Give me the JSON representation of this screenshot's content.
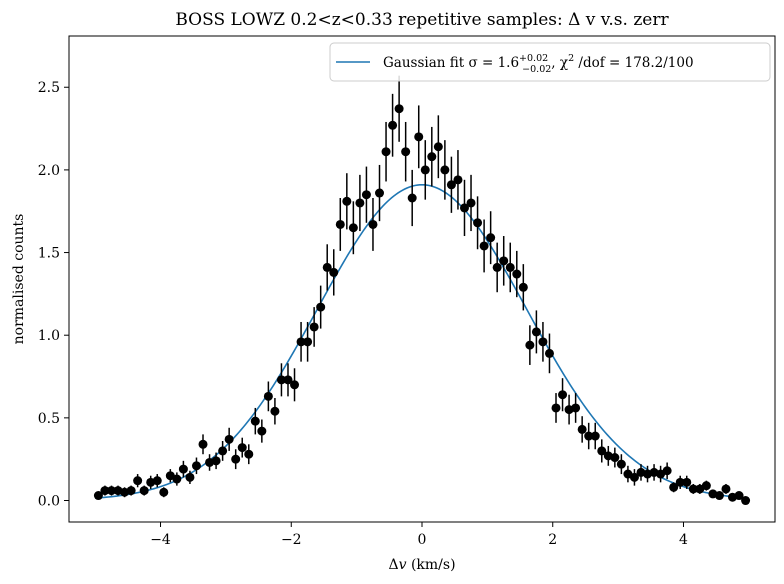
{
  "chart_data": {
    "type": "scatter",
    "title": "BOSS LOWZ 0.2<z<0.33 repetitive samples: Δ v v.s. zerr",
    "xlabel": "Δv (km/s)",
    "ylabel": "normalised counts",
    "xlim": [
      -5.4,
      5.4
    ],
    "ylim": [
      -0.13,
      2.81
    ],
    "xticks": [
      -4,
      -2,
      0,
      2,
      4
    ],
    "xtick_labels": [
      "−4",
      "−2",
      "0",
      "2",
      "4"
    ],
    "yticks": [
      0.0,
      0.5,
      1.0,
      1.5,
      2.0,
      2.5
    ],
    "ytick_labels": [
      "0.0",
      "0.5",
      "1.0",
      "1.5",
      "2.0",
      "2.5"
    ],
    "grid": false,
    "legend": {
      "placement": "upper-right",
      "entries": [
        {
          "label_prefix": "Gaussian fit σ = 1.6",
          "label_sup": "+0.02",
          "label_sub": "−0.02",
          "label_mid": ", χ",
          "label_sq": "2",
          "label_suffix": " /dof = 178.2/100",
          "color": "#1f77b4",
          "marker": "line"
        }
      ]
    },
    "series": [
      {
        "kind": "errorbar",
        "color": "#000000",
        "x": [
          -4.95,
          -4.85,
          -4.75,
          -4.65,
          -4.55,
          -4.45,
          -4.35,
          -4.25,
          -4.15,
          -4.05,
          -3.95,
          -3.85,
          -3.75,
          -3.65,
          -3.55,
          -3.45,
          -3.35,
          -3.25,
          -3.15,
          -3.05,
          -2.95,
          -2.85,
          -2.75,
          -2.65,
          -2.55,
          -2.45,
          -2.35,
          -2.25,
          -2.15,
          -2.05,
          -1.95,
          -1.85,
          -1.75,
          -1.65,
          -1.55,
          -1.45,
          -1.35,
          -1.25,
          -1.15,
          -1.05,
          -0.95,
          -0.85,
          -0.75,
          -0.65,
          -0.55,
          -0.45,
          -0.35,
          -0.25,
          -0.15,
          -0.05,
          0.05,
          0.15,
          0.25,
          0.35,
          0.45,
          0.55,
          0.65,
          0.75,
          0.85,
          0.95,
          1.05,
          1.15,
          1.25,
          1.35,
          1.45,
          1.55,
          1.65,
          1.75,
          1.85,
          1.95,
          2.05,
          2.15,
          2.25,
          2.35,
          2.45,
          2.55,
          2.65,
          2.75,
          2.85,
          2.95,
          3.05,
          3.15,
          3.25,
          3.35,
          3.45,
          3.55,
          3.65,
          3.75,
          3.85,
          3.95,
          4.05,
          4.15,
          4.25,
          4.35,
          4.45,
          4.55,
          4.65,
          4.75,
          4.85,
          4.95
        ],
        "y": [
          0.03,
          0.06,
          0.06,
          0.06,
          0.05,
          0.06,
          0.12,
          0.06,
          0.11,
          0.12,
          0.05,
          0.15,
          0.13,
          0.19,
          0.14,
          0.21,
          0.34,
          0.23,
          0.24,
          0.3,
          0.37,
          0.25,
          0.32,
          0.28,
          0.48,
          0.42,
          0.63,
          0.54,
          0.73,
          0.73,
          0.7,
          0.96,
          0.96,
          1.05,
          1.17,
          1.41,
          1.38,
          1.67,
          1.81,
          1.65,
          1.8,
          1.85,
          1.67,
          1.86,
          2.11,
          2.27,
          2.37,
          2.11,
          1.83,
          2.2,
          2.0,
          2.08,
          2.14,
          2.0,
          1.91,
          1.94,
          1.77,
          1.8,
          1.68,
          1.54,
          1.59,
          1.41,
          1.45,
          1.41,
          1.37,
          1.29,
          0.94,
          1.02,
          0.96,
          0.89,
          0.56,
          0.64,
          0.55,
          0.56,
          0.43,
          0.39,
          0.39,
          0.3,
          0.27,
          0.26,
          0.22,
          0.16,
          0.14,
          0.17,
          0.16,
          0.17,
          0.16,
          0.18,
          0.08,
          0.11,
          0.11,
          0.07,
          0.07,
          0.09,
          0.04,
          0.03,
          0.07,
          0.02,
          0.03,
          0.0
        ],
        "yerr": [
          0.02,
          0.03,
          0.03,
          0.03,
          0.03,
          0.03,
          0.04,
          0.03,
          0.04,
          0.04,
          0.03,
          0.04,
          0.04,
          0.05,
          0.04,
          0.05,
          0.06,
          0.05,
          0.05,
          0.06,
          0.07,
          0.06,
          0.06,
          0.06,
          0.08,
          0.07,
          0.09,
          0.08,
          0.1,
          0.1,
          0.1,
          0.12,
          0.12,
          0.12,
          0.13,
          0.14,
          0.14,
          0.16,
          0.17,
          0.16,
          0.17,
          0.17,
          0.16,
          0.17,
          0.18,
          0.19,
          0.2,
          0.18,
          0.17,
          0.19,
          0.18,
          0.18,
          0.19,
          0.18,
          0.17,
          0.18,
          0.17,
          0.17,
          0.16,
          0.16,
          0.16,
          0.15,
          0.15,
          0.15,
          0.14,
          0.14,
          0.12,
          0.13,
          0.12,
          0.12,
          0.09,
          0.1,
          0.09,
          0.09,
          0.08,
          0.08,
          0.08,
          0.07,
          0.06,
          0.06,
          0.06,
          0.05,
          0.05,
          0.05,
          0.05,
          0.05,
          0.05,
          0.05,
          0.03,
          0.04,
          0.04,
          0.03,
          0.03,
          0.03,
          0.02,
          0.02,
          0.03,
          0.02,
          0.02,
          0.02
        ]
      },
      {
        "kind": "line",
        "name": "Gaussian fit",
        "color": "#1f77b4",
        "model": "gaussian",
        "amplitude": 1.91,
        "mean": 0.0,
        "sigma": 1.6,
        "x_range": [
          -5.0,
          5.0
        ]
      }
    ]
  }
}
